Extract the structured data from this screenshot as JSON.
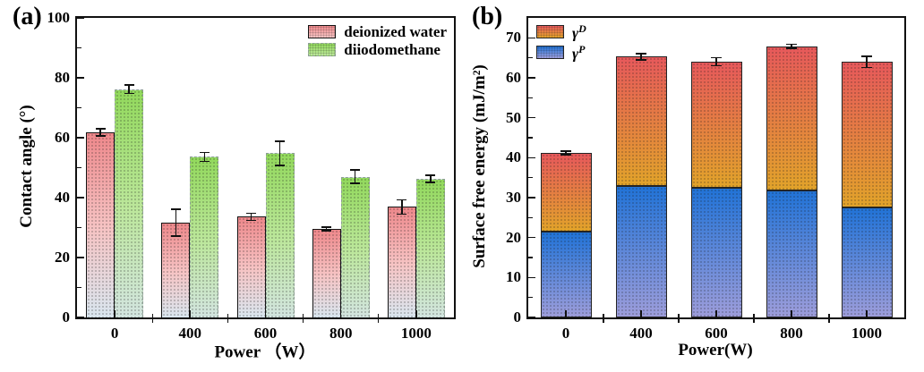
{
  "panels": {
    "a": {
      "label": "(a)"
    },
    "b": {
      "label": "(b)"
    }
  },
  "chart_data": [
    {
      "type": "bar",
      "panel": "a",
      "title": "",
      "xlabel": "Power （W）",
      "ylabel": "Contact angle (°)",
      "categories": [
        "0",
        "400",
        "600",
        "800",
        "1000"
      ],
      "ylim": [
        0,
        100
      ],
      "yticks": [
        0,
        20,
        40,
        60,
        80,
        100
      ],
      "y_minor_step": 10,
      "grid": false,
      "legend_position": "top-right",
      "series": [
        {
          "name": "deionized water",
          "slug": "deionized-water",
          "values": [
            61.8,
            31.7,
            33.6,
            29.5,
            36.9
          ],
          "errors": [
            1.2,
            4.5,
            1.2,
            0.6,
            2.4
          ],
          "color_top": "#ee888b",
          "color_mid": "#f6c4c4",
          "color_bottom": "#d9e6ef",
          "border": "1.5px solid #141414"
        },
        {
          "name": "diiodomethane",
          "slug": "diiodomethane",
          "values": [
            76.2,
            53.6,
            54.8,
            47.0,
            46.3
          ],
          "errors": [
            1.4,
            1.5,
            4.0,
            2.2,
            1.2
          ],
          "color_top": "#92d95c",
          "color_mid": "#bce79b",
          "color_bottom": "#d3e5e0",
          "border": "1.2px dashed #8d9e94"
        }
      ]
    },
    {
      "type": "stacked-bar",
      "panel": "b",
      "title": "",
      "xlabel": "Power(W)",
      "ylabel": "Surface free energy (mJ/m²)",
      "categories": [
        "0",
        "400",
        "600",
        "800",
        "1000"
      ],
      "ylim": [
        0,
        75
      ],
      "yticks": [
        0,
        10,
        20,
        30,
        40,
        50,
        60,
        70
      ],
      "y_minor_step": 5,
      "grid": false,
      "legend_position": "top-left",
      "series": [
        {
          "name": "γ^D",
          "slug": "gamma-d",
          "legend_base": "γ",
          "legend_sup": "D",
          "values": [
            19.8,
            32.3,
            31.6,
            36.1,
            36.4
          ],
          "color_top": "#e7595b",
          "color_bottom": "#e2a32a",
          "border": "1.2px solid #242424"
        },
        {
          "name": "γ^P",
          "slug": "gamma-p",
          "legend_base": "γ",
          "legend_sup": "P",
          "values": [
            21.4,
            33.0,
            32.4,
            31.8,
            27.6
          ],
          "color_top": "#2173d7",
          "color_bottom": "#9d9ddb",
          "border": "1.2px solid #242424"
        }
      ],
      "totals": [
        41.2,
        65.3,
        64.0,
        67.9,
        64.0
      ],
      "total_errors": [
        0.4,
        0.8,
        1.0,
        0.5,
        1.4
      ]
    }
  ]
}
